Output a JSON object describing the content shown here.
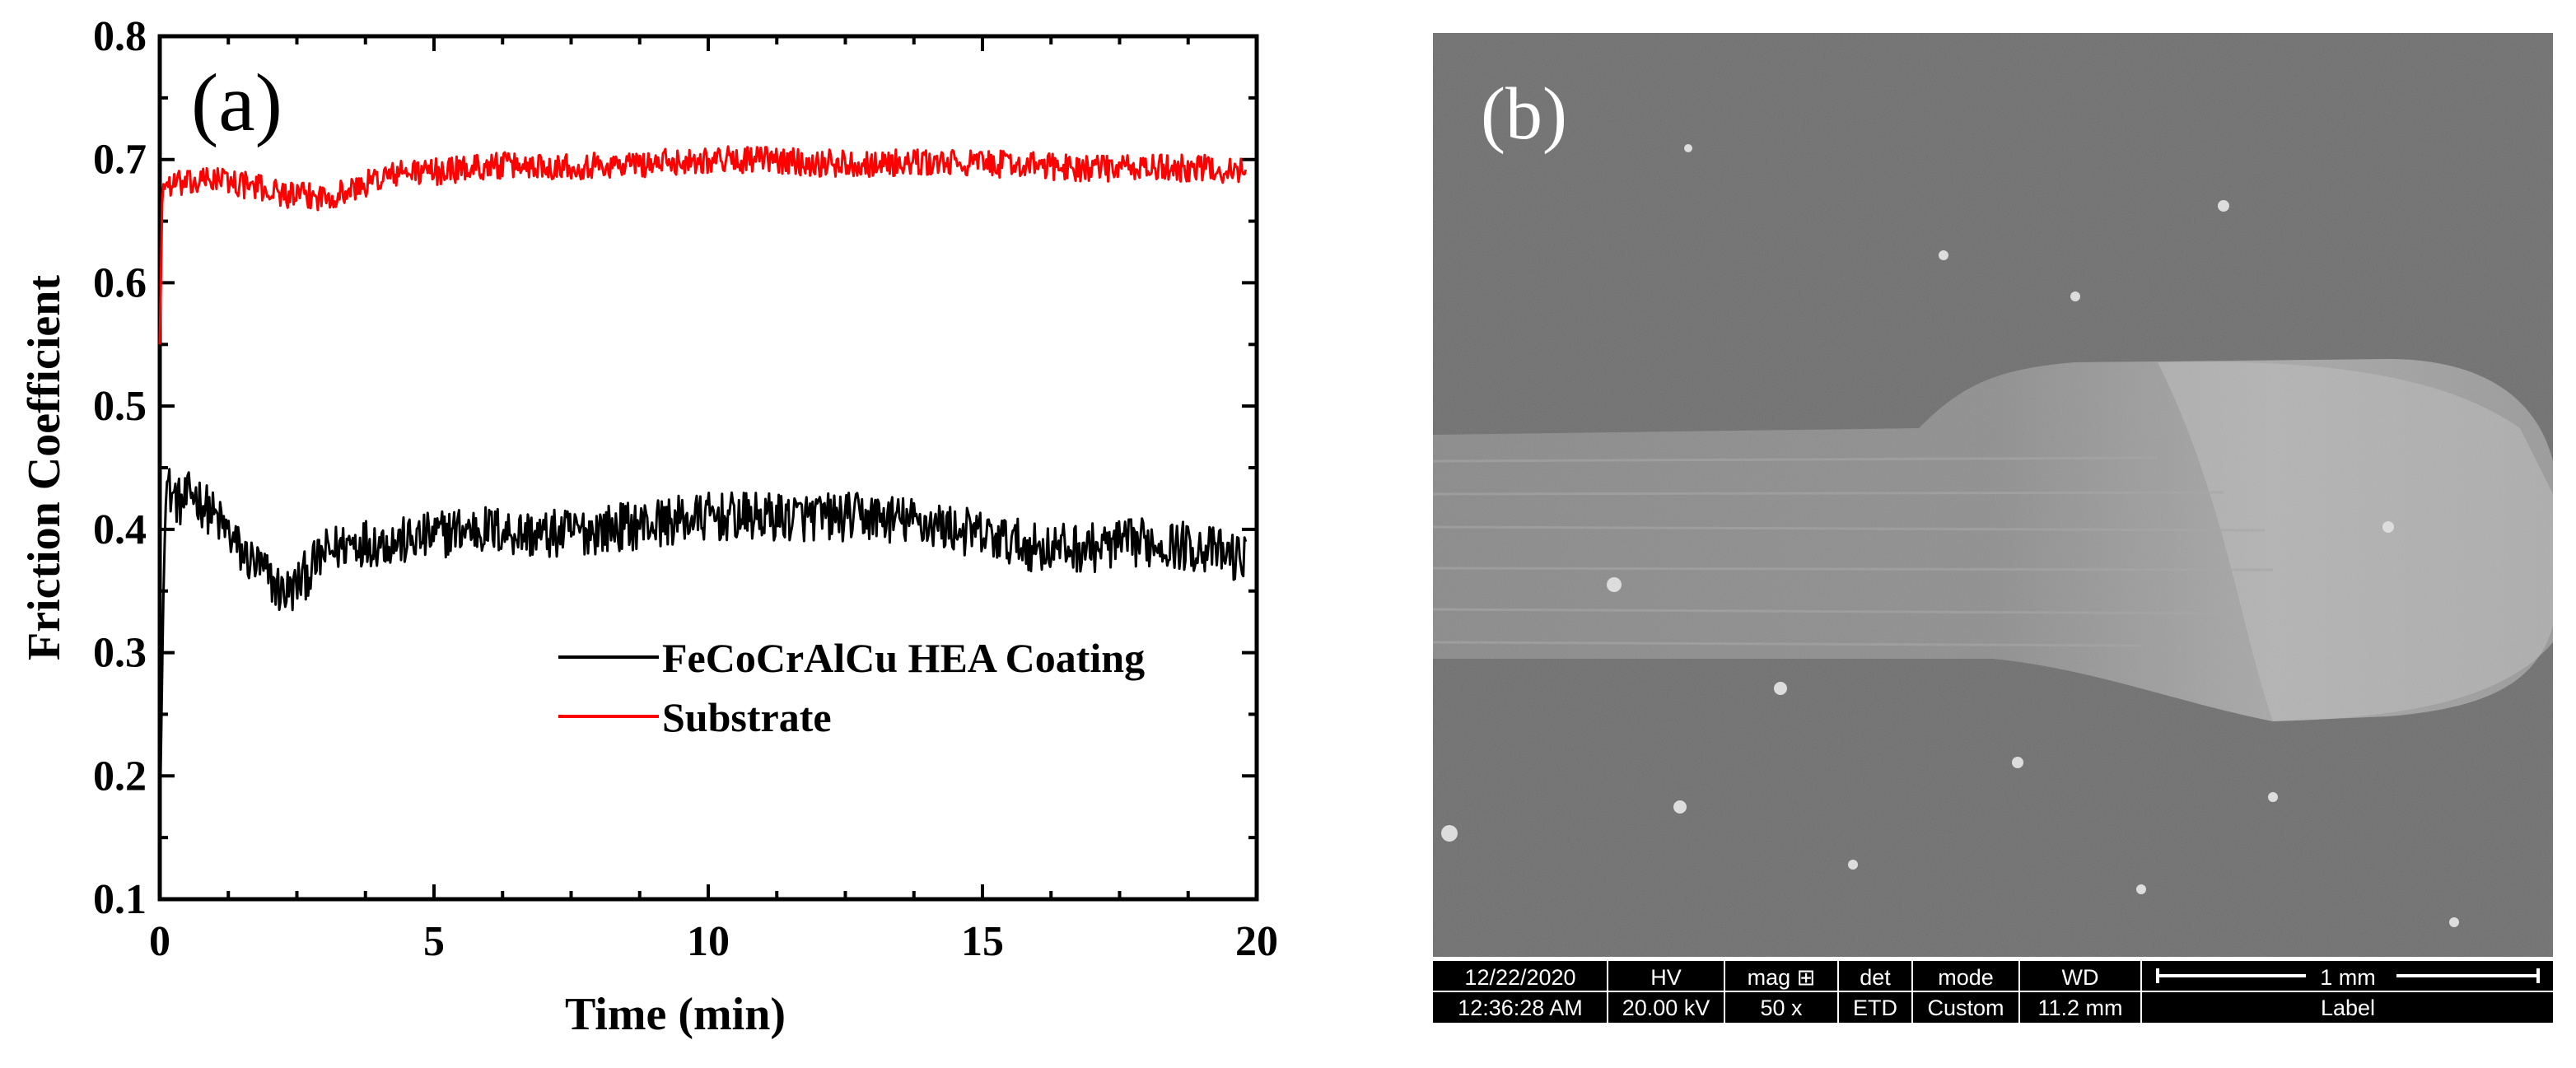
{
  "panel_a": {
    "label": "(a)"
  },
  "panel_b": {
    "label": "(b)",
    "sem_info": {
      "headers": [
        "12/22/2020",
        "HV",
        "mag ⊞",
        "det",
        "mode",
        "WD",
        "1 mm"
      ],
      "values": [
        "12:36:28 AM",
        "20.00 kV",
        "50 x",
        "ETD",
        "Custom",
        "11.2 mm",
        "Label"
      ]
    }
  },
  "chart_data": {
    "type": "line",
    "title": "",
    "xlabel": "Time (min)",
    "ylabel": "Friction Coefficient",
    "xlim": [
      0,
      20
    ],
    "ylim": [
      0.1,
      0.8
    ],
    "x_ticks": [
      0,
      5,
      10,
      15,
      20
    ],
    "x_tick_labels": [
      "0",
      "5",
      "10",
      "15",
      "20"
    ],
    "y_ticks": [
      0.1,
      0.2,
      0.3,
      0.4,
      0.5,
      0.6,
      0.7,
      0.8
    ],
    "y_tick_labels": [
      "0.1",
      "0.2",
      "0.3",
      "0.4",
      "0.5",
      "0.6",
      "0.7",
      "0.8"
    ],
    "legend_position": "lower-right",
    "series": [
      {
        "name": "FeCoCrAlCu HEA Coating",
        "color": "#000000",
        "x": [
          0,
          0.1,
          0.2,
          0.4,
          0.6,
          0.8,
          1.0,
          1.2,
          1.5,
          1.8,
          2.0,
          2.2,
          2.4,
          2.6,
          3.0,
          3.5,
          4.0,
          4.5,
          5.0,
          5.5,
          6.0,
          7.0,
          8.0,
          9.0,
          10.0,
          11.0,
          12.0,
          13.0,
          14.0,
          15.0,
          16.0,
          17.0,
          18.0,
          19.0,
          19.8
        ],
        "values": [
          0.16,
          0.44,
          0.43,
          0.42,
          0.43,
          0.42,
          0.41,
          0.4,
          0.38,
          0.37,
          0.36,
          0.35,
          0.35,
          0.36,
          0.38,
          0.39,
          0.39,
          0.39,
          0.395,
          0.4,
          0.4,
          0.395,
          0.4,
          0.405,
          0.41,
          0.41,
          0.41,
          0.41,
          0.405,
          0.395,
          0.385,
          0.385,
          0.39,
          0.385,
          0.375
        ]
      },
      {
        "name": "Substrate",
        "color": "#ff0000",
        "x": [
          0,
          0.05,
          0.1,
          0.3,
          0.6,
          1.0,
          1.5,
          2.0,
          2.5,
          3.0,
          3.5,
          4.0,
          4.5,
          5.0,
          6.0,
          7.0,
          8.0,
          9.0,
          10.0,
          11.0,
          12.0,
          13.0,
          14.0,
          15.0,
          16.0,
          17.0,
          18.0,
          19.0,
          19.8
        ],
        "values": [
          0.55,
          0.68,
          0.68,
          0.68,
          0.68,
          0.685,
          0.68,
          0.675,
          0.67,
          0.67,
          0.675,
          0.685,
          0.69,
          0.69,
          0.695,
          0.695,
          0.695,
          0.697,
          0.7,
          0.7,
          0.697,
          0.697,
          0.697,
          0.697,
          0.695,
          0.693,
          0.693,
          0.693,
          0.69
        ]
      }
    ]
  }
}
